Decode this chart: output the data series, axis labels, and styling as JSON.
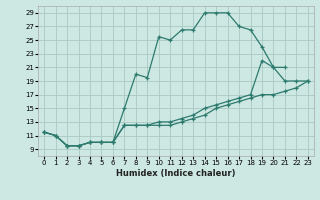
{
  "xlabel": "Humidex (Indice chaleur)",
  "bg_color": "#cde8e2",
  "grid_color": "#aac8c2",
  "line_color": "#2d7a6e",
  "xlim": [
    -0.5,
    23.5
  ],
  "ylim": [
    8,
    30
  ],
  "xticks": [
    0,
    1,
    2,
    3,
    4,
    5,
    6,
    7,
    8,
    9,
    10,
    11,
    12,
    13,
    14,
    15,
    16,
    17,
    18,
    19,
    20,
    21,
    22,
    23
  ],
  "yticks": [
    9,
    11,
    13,
    15,
    17,
    19,
    21,
    23,
    25,
    27,
    29
  ],
  "line1_x": [
    0,
    1,
    2,
    3,
    4,
    5,
    6,
    7,
    8,
    9,
    10,
    11,
    12,
    13,
    14,
    15,
    16,
    17,
    18,
    19,
    20,
    21
  ],
  "line1_y": [
    11.5,
    11,
    9.5,
    9.5,
    10,
    10,
    10,
    15,
    20,
    19.5,
    25.5,
    25,
    26.5,
    26.5,
    29,
    29,
    29,
    27,
    26.5,
    24,
    21,
    21
  ],
  "line2_x": [
    0,
    1,
    2,
    3,
    4,
    5,
    6,
    7,
    8,
    9,
    10,
    11,
    12,
    13,
    14,
    15,
    16,
    17,
    18,
    19,
    20,
    21,
    22,
    23
  ],
  "line2_y": [
    11.5,
    11,
    9.5,
    9.5,
    10,
    10,
    10,
    12.5,
    12.5,
    12.5,
    13,
    13,
    13.5,
    14,
    15,
    15.5,
    16,
    16.5,
    17,
    22,
    21,
    19,
    19,
    19
  ],
  "line3_x": [
    0,
    1,
    2,
    3,
    4,
    5,
    6,
    7,
    8,
    9,
    10,
    11,
    12,
    13,
    14,
    15,
    16,
    17,
    18,
    19,
    20,
    21,
    22,
    23
  ],
  "line3_y": [
    11.5,
    11,
    9.5,
    9.5,
    10,
    10,
    10,
    12.5,
    12.5,
    12.5,
    12.5,
    12.5,
    13,
    13.5,
    14,
    15,
    15.5,
    16,
    16.5,
    17,
    17,
    17.5,
    18,
    19
  ]
}
